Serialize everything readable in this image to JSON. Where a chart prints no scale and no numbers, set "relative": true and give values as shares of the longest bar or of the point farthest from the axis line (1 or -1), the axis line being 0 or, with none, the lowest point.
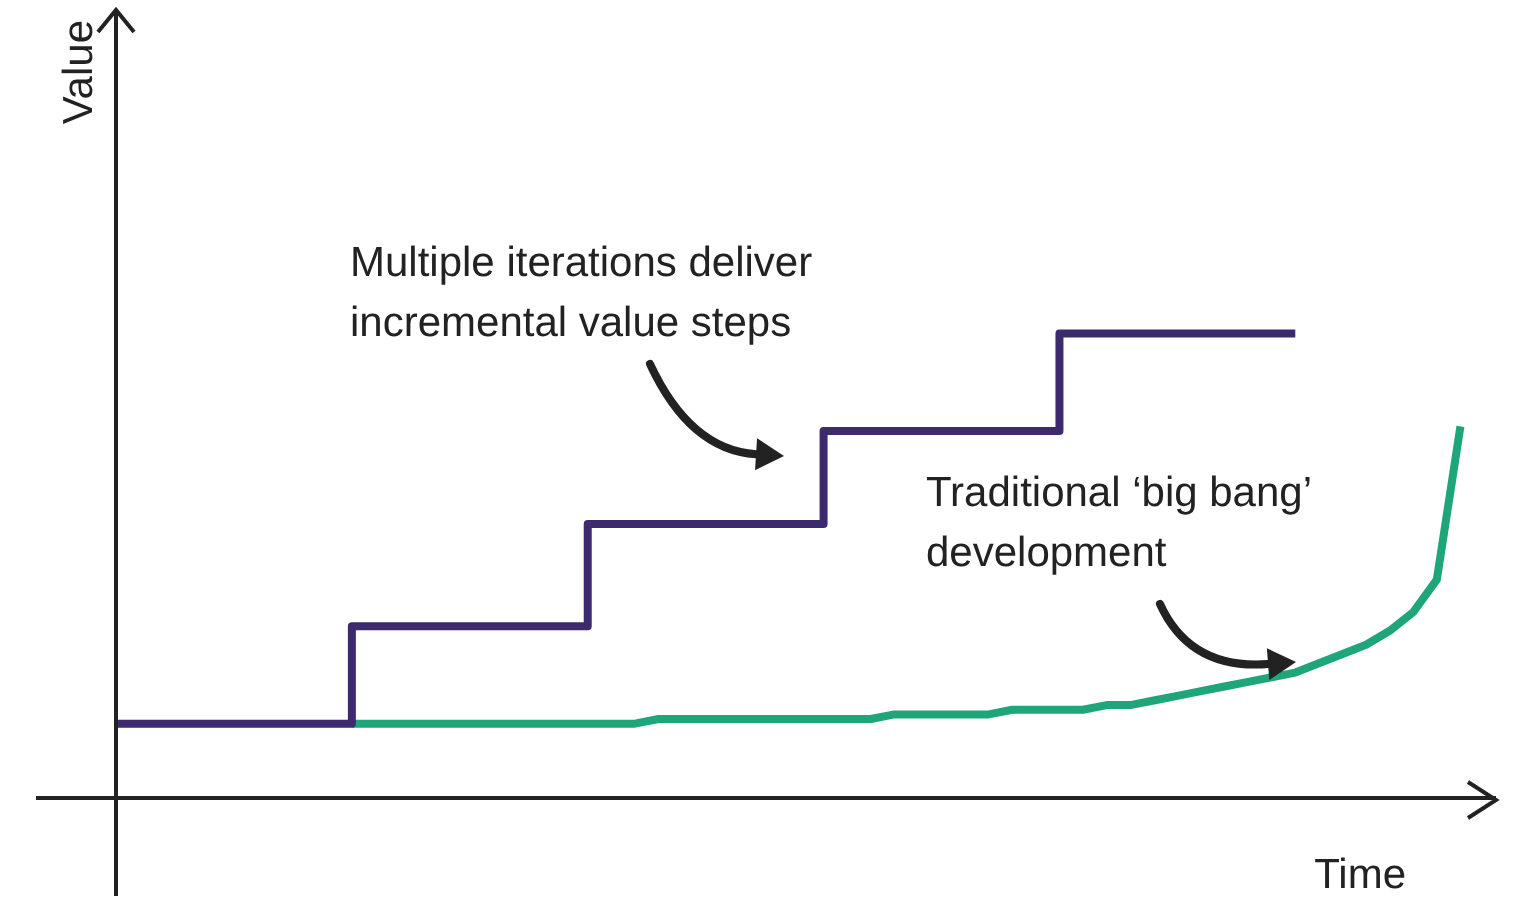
{
  "chart_data": {
    "type": "step",
    "relative": true,
    "xlabel": "Time",
    "ylabel": "Value",
    "marker": "none",
    "categories": [
      null,
      null,
      null,
      null,
      null,
      null,
      null,
      null,
      null,
      null,
      null,
      null,
      null,
      null,
      null,
      null,
      null,
      null,
      null,
      null,
      null,
      null,
      null,
      null,
      null,
      null,
      null,
      null,
      null,
      null,
      null,
      null,
      null,
      null,
      null,
      null,
      null,
      null,
      null,
      null,
      null,
      null,
      null,
      null,
      null,
      null,
      null,
      null,
      null,
      null,
      null,
      null,
      null,
      null,
      null,
      null,
      null,
      null,
      null
    ],
    "series": [
      {
        "color": "#3d2a6e",
        "values": [
          0.16,
          0.16,
          0.16,
          0.16,
          0.16,
          0.16,
          0.16,
          0.16,
          0.16,
          0.16,
          0.37,
          0.37,
          0.37,
          0.37,
          0.37,
          0.37,
          0.37,
          0.37,
          0.37,
          0.37,
          0.59,
          0.59,
          0.59,
          0.59,
          0.59,
          0.59,
          0.59,
          0.59,
          0.59,
          0.59,
          0.79,
          0.79,
          0.79,
          0.79,
          0.79,
          0.79,
          0.79,
          0.79,
          0.79,
          0.79,
          1.0,
          1.0,
          1.0,
          1.0,
          1.0,
          1.0,
          1.0,
          1.0,
          1.0,
          1.0,
          1.0,
          null,
          null,
          null,
          null,
          null,
          null,
          null,
          null
        ]
      },
      {
        "type": "line",
        "color": "#1fa57a",
        "values": [
          null,
          null,
          null,
          null,
          null,
          null,
          null,
          null,
          null,
          null,
          0.16,
          0.16,
          0.16,
          0.16,
          0.16,
          0.16,
          0.16,
          0.16,
          0.16,
          0.16,
          0.16,
          0.16,
          0.16,
          0.17,
          0.17,
          0.17,
          0.17,
          0.17,
          0.17,
          0.17,
          0.17,
          0.17,
          0.17,
          0.18,
          0.18,
          0.18,
          0.18,
          0.18,
          0.19,
          0.19,
          0.19,
          0.19,
          0.2,
          0.2,
          0.21,
          0.22,
          0.23,
          0.24,
          0.25,
          0.26,
          0.27,
          0.29,
          0.31,
          0.33,
          0.36,
          0.4,
          0.47,
          0.8,
          null
        ]
      }
    ],
    "annotations": [
      "Multiple iterations deliver\nincremental value steps",
      "Traditional ‘big bang’\ndevelopment"
    ]
  }
}
